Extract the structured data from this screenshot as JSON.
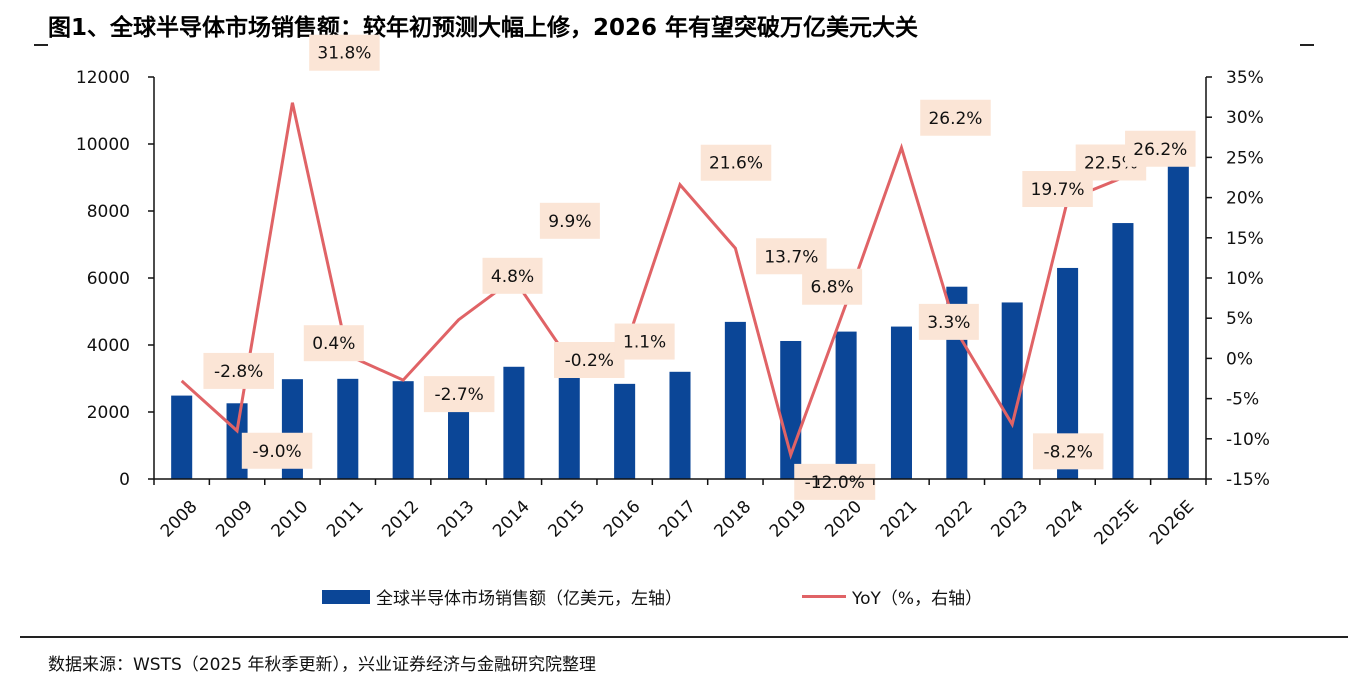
{
  "title": "图1、全球半导体市场销售额：较年初预测大幅上修，2026 年有望突破万亿美元大关",
  "source": "数据来源：WSTS（2025 年秋季更新），兴业证券经济与金融研究院整理",
  "colors": {
    "bar": "#0b4697",
    "line": "#e06366",
    "label_bg": "#fbe5d6",
    "axis": "#111111"
  },
  "chart_data": {
    "type": "bar+line",
    "title": "图1、全球半导体市场销售额：较年初预测大幅上修，2026 年有望突破万亿美元大关",
    "categories": [
      "2008",
      "2009",
      "2010",
      "2011",
      "2012",
      "2013",
      "2014",
      "2015",
      "2016",
      "2017",
      "2018",
      "2019",
      "2020",
      "2021",
      "2022",
      "2023",
      "2024",
      "2025E",
      "2026E"
    ],
    "series": [
      {
        "name": "全球半导体市场销售额（亿美元，左轴）",
        "type": "bar",
        "axis": "left",
        "values": [
          2490,
          2260,
          2980,
          2990,
          2920,
          2270,
          3350,
          3350,
          2840,
          3200,
          4690,
          4120,
          4400,
          4550,
          5740,
          5270,
          6300,
          7640,
          9760
        ]
      },
      {
        "name": "YoY（%，右轴）",
        "type": "line",
        "axis": "right",
        "values": [
          -2.8,
          -9.0,
          31.8,
          0.4,
          -2.7,
          4.8,
          9.9,
          -0.2,
          1.1,
          21.6,
          13.7,
          -12.0,
          6.8,
          26.2,
          3.3,
          -8.2,
          19.7,
          22.5,
          26.2
        ],
        "labels": [
          "-2.8%",
          "-9.0%",
          "31.8%",
          "0.4%",
          "-2.7%",
          "4.8%",
          "9.9%",
          "-0.2%",
          "1.1%",
          "21.6%",
          "13.7%",
          "-12.0%",
          "6.8%",
          "26.2%",
          "3.3%",
          "-8.2%",
          "19.7%",
          "22.5%",
          "26.2%"
        ]
      }
    ],
    "left_axis": {
      "ylim": [
        0,
        12000
      ],
      "ticks": [
        "0",
        "2000",
        "4000",
        "6000",
        "8000",
        "10000",
        "12000"
      ]
    },
    "right_axis": {
      "ylim": [
        -15,
        35
      ],
      "ticks": [
        "-15%",
        "-10%",
        "-5%",
        "0%",
        "5%",
        "10%",
        "15%",
        "20%",
        "25%",
        "30%",
        "35%"
      ]
    },
    "xlabel": "",
    "grid": false,
    "legend": {
      "position": "bottom",
      "entries": [
        "全球半导体市场销售额（亿美元，左轴）",
        "YoY（%，右轴）"
      ]
    }
  }
}
